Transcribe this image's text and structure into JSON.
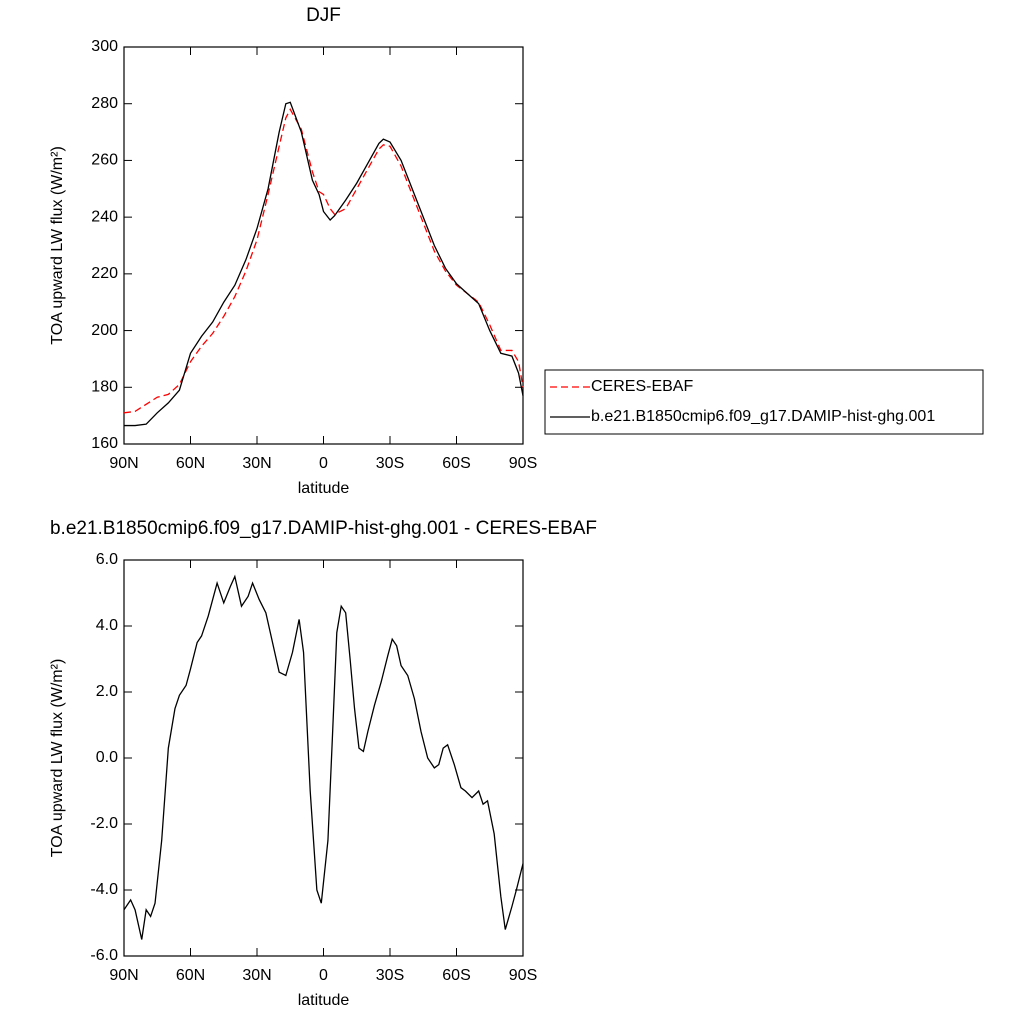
{
  "chart_data": [
    {
      "type": "line",
      "title": "DJF",
      "ylabel": "TOA upward LW flux (W/m²)",
      "xlabel": "latitude",
      "x": [
        90,
        85,
        80,
        75,
        70,
        65,
        60,
        55,
        50,
        45,
        40,
        35,
        30,
        25,
        20,
        17,
        15,
        10,
        5,
        2,
        0,
        -3,
        -5,
        -10,
        -15,
        -20,
        -25,
        -27,
        -30,
        -35,
        -40,
        -45,
        -50,
        -55,
        -60,
        -65,
        -70,
        -75,
        -80,
        -85,
        -88,
        -90
      ],
      "series": [
        {
          "name": "CERES-EBAF",
          "color": "#ff0000",
          "line_style": "dashed",
          "values": [
            171,
            171.5,
            174,
            176.5,
            177.5,
            181,
            189,
            194.5,
            199,
            205,
            212,
            221,
            232,
            248,
            265,
            275,
            278,
            271,
            256,
            249,
            248,
            243,
            241,
            243,
            250,
            257,
            264,
            265.5,
            265,
            258,
            248,
            238,
            228,
            221,
            216,
            213,
            210,
            202,
            193,
            193,
            189,
            180
          ]
        },
        {
          "name": "b.e21.B1850cmip6.f09_g17.DAMIP-hist-ghg.001",
          "color": "#000000",
          "line_style": "solid",
          "values": [
            166.5,
            166.5,
            167,
            171,
            174.5,
            179,
            192,
            198,
            203,
            210,
            216,
            225,
            236,
            250,
            270,
            280,
            280.5,
            270,
            253,
            248,
            242,
            239,
            240.5,
            246,
            252,
            259,
            266,
            267.5,
            266.5,
            260,
            250,
            240,
            230,
            222,
            216.5,
            213,
            209.5,
            200,
            192,
            191,
            185,
            177
          ]
        }
      ],
      "xlim": [
        90,
        -90
      ],
      "xticks": [
        {
          "value": 90,
          "label": "90N"
        },
        {
          "value": 60,
          "label": "60N"
        },
        {
          "value": 30,
          "label": "30N"
        },
        0,
        {
          "value": -30,
          "label": "30S"
        },
        {
          "value": -60,
          "label": "60S"
        },
        {
          "value": -90,
          "label": "90S"
        }
      ],
      "ylim": [
        160,
        300
      ],
      "yticks": [
        160,
        180,
        200,
        220,
        240,
        260,
        280,
        300
      ],
      "legend": "right"
    },
    {
      "type": "line",
      "title": "b.e21.B1850cmip6.f09_g17.DAMIP-hist-ghg.001 - CERES-EBAF",
      "ylabel": "TOA upward LW flux (W/m²)",
      "xlabel": "latitude",
      "x": [
        90,
        87,
        85,
        82,
        80,
        78,
        76,
        73,
        70,
        67,
        65,
        62,
        60,
        57,
        55,
        52,
        50,
        48,
        45,
        42,
        40,
        37,
        34,
        32,
        29,
        26,
        23,
        20,
        17,
        14,
        11,
        9,
        6,
        3,
        1,
        -2,
        -4,
        -6,
        -8,
        -10,
        -12,
        -14,
        -16,
        -18,
        -20,
        -23,
        -26,
        -29,
        -31,
        -33,
        -35,
        -38,
        -41,
        -44,
        -47,
        -50,
        -52,
        -54,
        -56,
        -59,
        -62,
        -64,
        -67,
        -70,
        -72,
        -74,
        -77,
        -80,
        -82,
        -85,
        -87,
        -90
      ],
      "color": "#000000",
      "values": [
        -4.6,
        -4.3,
        -4.6,
        -5.5,
        -4.6,
        -4.8,
        -4.4,
        -2.5,
        0.3,
        1.5,
        1.9,
        2.2,
        2.7,
        3.5,
        3.7,
        4.3,
        4.8,
        5.3,
        4.7,
        5.2,
        5.5,
        4.6,
        4.9,
        5.3,
        4.8,
        4.4,
        3.5,
        2.6,
        2.5,
        3.2,
        4.2,
        3.2,
        -1,
        -4.0,
        -4.4,
        -2.5,
        0.6,
        3.8,
        4.6,
        4.4,
        3.0,
        1.5,
        0.3,
        0.2,
        0.8,
        1.6,
        2.3,
        3.1,
        3.6,
        3.4,
        2.8,
        2.5,
        1.8,
        0.8,
        0.0,
        -0.3,
        -0.2,
        0.3,
        0.4,
        -0.2,
        -0.9,
        -1.0,
        -1.2,
        -1.0,
        -1.4,
        -1.3,
        -2.3,
        -4.2,
        -5.2,
        -4.5,
        -4.0,
        -3.2
      ],
      "xlim": [
        90,
        -90
      ],
      "xticks": [
        {
          "value": 90,
          "label": "90N"
        },
        {
          "value": 60,
          "label": "60N"
        },
        {
          "value": 30,
          "label": "30N"
        },
        0,
        {
          "value": -30,
          "label": "30S"
        },
        {
          "value": -60,
          "label": "60S"
        },
        {
          "value": -90,
          "label": "90S"
        }
      ],
      "ylim": [
        -6,
        6
      ],
      "yticks": [
        {
          "value": -6,
          "label": "-6.0"
        },
        {
          "value": -4,
          "label": "-4.0"
        },
        {
          "value": -2,
          "label": "-2.0"
        },
        {
          "value": 0,
          "label": "0.0"
        },
        {
          "value": 2,
          "label": "2.0"
        },
        {
          "value": 4,
          "label": "4.0"
        },
        {
          "value": 6,
          "label": "6.0"
        }
      ]
    }
  ]
}
